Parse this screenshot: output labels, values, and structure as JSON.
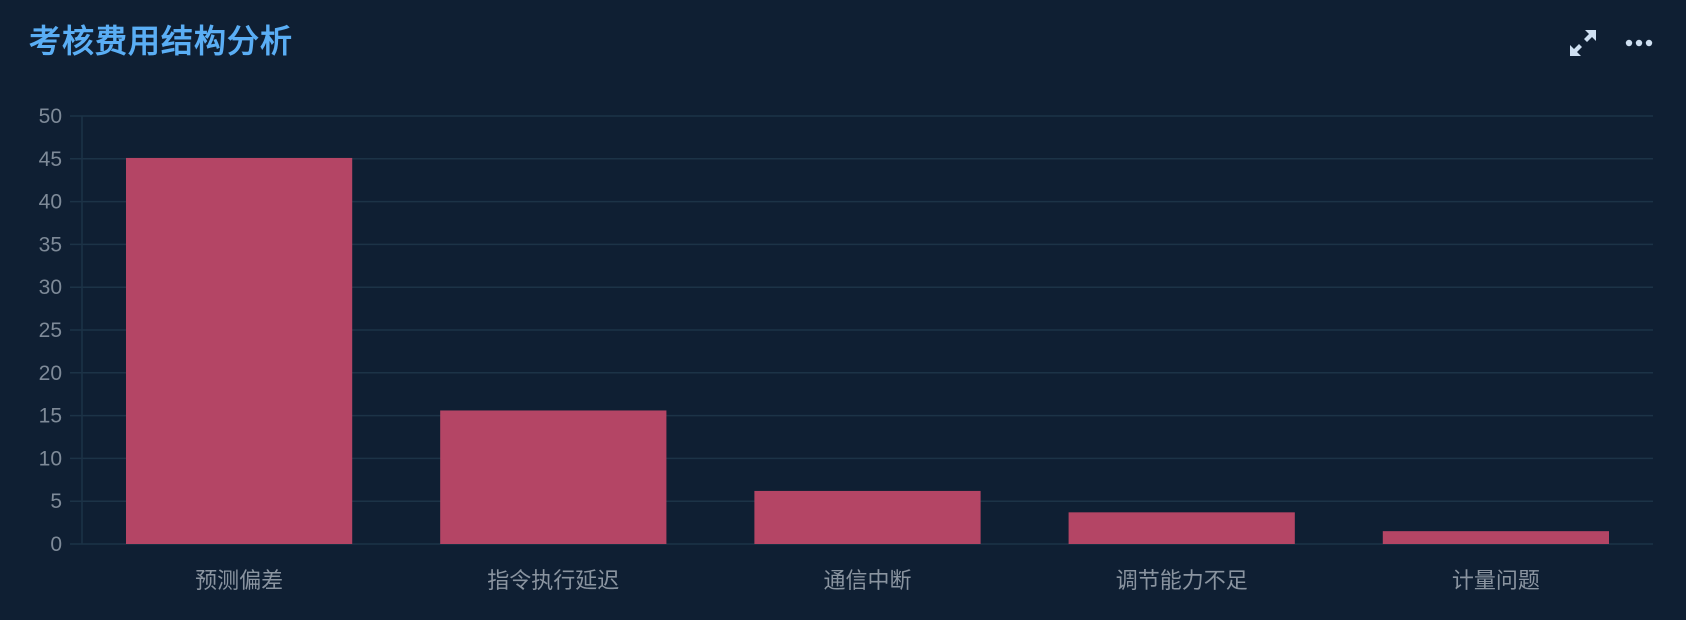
{
  "title": "考核费用结构分析",
  "toolbar": {
    "expand_icon": "expand-arrows-icon",
    "more_icon": "more-dots-icon"
  },
  "colors": {
    "background": "#0f1f33",
    "title": "#5aaef5",
    "bar": "#b44565",
    "grid": "#1c3347",
    "tick": "#7e8a98",
    "icon": "#cfe0f2"
  },
  "chart_data": {
    "type": "bar",
    "title": "考核费用结构分析",
    "categories": [
      "预测偏差",
      "指令执行延迟",
      "通信中断",
      "调节能力不足",
      "计量问题"
    ],
    "values": [
      45.1,
      15.6,
      6.2,
      3.7,
      1.5
    ],
    "ylim": [
      0,
      50
    ],
    "yticks": [
      0,
      5,
      10,
      15,
      20,
      25,
      30,
      35,
      40,
      45,
      50
    ],
    "grid": true,
    "legend": "none"
  }
}
